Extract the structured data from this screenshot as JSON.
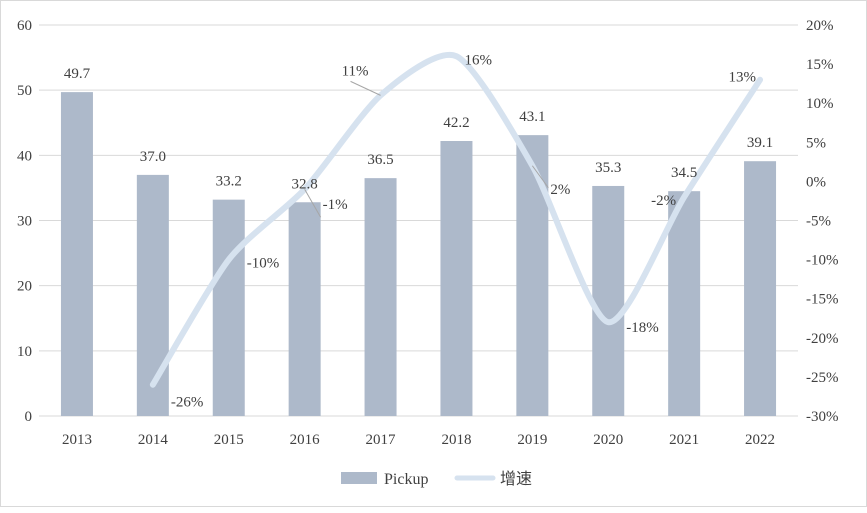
{
  "chart_data": {
    "type": "bar",
    "categories": [
      "2013",
      "2014",
      "2015",
      "2016",
      "2017",
      "2018",
      "2019",
      "2020",
      "2021",
      "2022"
    ],
    "series": [
      {
        "name": "Pickup",
        "type": "bar",
        "axis": "left",
        "values": [
          49.7,
          37.0,
          33.2,
          32.8,
          36.5,
          42.2,
          43.1,
          35.3,
          34.5,
          39.1
        ],
        "labels": [
          "49.7",
          "37.0",
          "33.2",
          "32.8",
          "36.5",
          "42.2",
          "43.1",
          "35.3",
          "34.5",
          "39.1"
        ],
        "color": "#adb9ca"
      },
      {
        "name": "增速",
        "type": "line",
        "axis": "right",
        "x": [
          "2014",
          "2015",
          "2016",
          "2017",
          "2018",
          "2019",
          "2020",
          "2021",
          "2022"
        ],
        "values": [
          -26,
          -10,
          -1,
          11,
          16,
          2,
          -18,
          -2,
          13
        ],
        "labels": [
          "-26%",
          "-10%",
          "-1%",
          "11%",
          "16%",
          "2%",
          "-18%",
          "-2%",
          "13%"
        ],
        "color": "#d6e2ef"
      }
    ],
    "y_left": {
      "ylim": [
        0,
        60
      ],
      "ticks": [
        "0",
        "10",
        "20",
        "30",
        "40",
        "50",
        "60"
      ]
    },
    "y_right": {
      "ylim": [
        -30,
        20
      ],
      "ticks": [
        "-30%",
        "-25%",
        "-20%",
        "-15%",
        "-10%",
        "-5%",
        "0%",
        "5%",
        "10%",
        "15%",
        "20%"
      ]
    },
    "grid": true,
    "legend": "bottom",
    "title": "",
    "xlabel": "",
    "ylabel": ""
  }
}
